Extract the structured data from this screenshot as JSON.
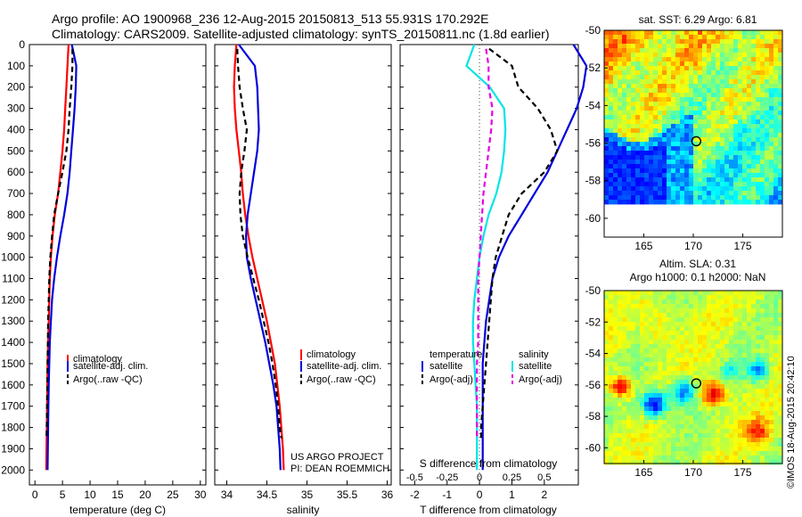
{
  "header": {
    "line1": "Argo profile: AO 1900968_236 12-Aug-2015 20150813_513 55.931S 170.292E",
    "line2": "Climatology: CARS2009. Satellite-adjusted climatology: synTS_20150811.nc (1.8d earlier)"
  },
  "colors": {
    "climatology": "#ff0000",
    "satellite": "#0000dd",
    "argo": "#000000",
    "salinity_satellite": "#00e5e5",
    "salinity_argo": "#e600e6",
    "zero_line": "#444444"
  },
  "project": {
    "line1": "US ARGO PROJECT",
    "line2": "PI: DEAN ROEMMICH"
  },
  "stamp": "©IMOS 18-Aug-2015 20:42:10",
  "maps": {
    "sst_title": "sat. SST: 6.29 Argo: 6.81",
    "sla_title1": "Altim. SLA: 0.31",
    "sla_title2": "Argo h1000: 0.1 h2000: NaN",
    "x_ticks": [
      "165",
      "170",
      "175"
    ],
    "y_ticks": [
      "-50",
      "-52",
      "-54",
      "-56",
      "-58",
      "-60"
    ],
    "lon_range": [
      161,
      179
    ],
    "lat_range": [
      -61,
      -50
    ],
    "float_marker": {
      "lon": 170.3,
      "lat": -55.9
    }
  },
  "chart_data": [
    {
      "type": "line",
      "name": "temperature",
      "xlabel": "temperature (deg C)",
      "ylabel": "",
      "xlim": [
        -1,
        31
      ],
      "ylim": [
        2070,
        0
      ],
      "x_ticks": [
        "0",
        "5",
        "10",
        "15",
        "20",
        "25",
        "30"
      ],
      "y_ticks": [
        "0",
        "100",
        "200",
        "300",
        "400",
        "500",
        "600",
        "700",
        "800",
        "900",
        "1000",
        "1100",
        "1200",
        "1300",
        "1400",
        "1500",
        "1600",
        "1700",
        "1800",
        "1900",
        "2000"
      ],
      "legend": [
        "climatology",
        "satellite-adj. clim.",
        "Argo(..raw -QC)"
      ],
      "legend_position": "lower-right",
      "series": [
        {
          "name": "climatology",
          "x": [
            6.1,
            5.9,
            5.7,
            5.5,
            5.3,
            5.0,
            4.6,
            4.2,
            3.6,
            3.2,
            2.9,
            2.7,
            2.6,
            2.5,
            2.4,
            2.3,
            2.25,
            2.2,
            2.15,
            2.1,
            2.05
          ],
          "y": [
            0,
            100,
            200,
            300,
            400,
            500,
            600,
            700,
            800,
            900,
            1000,
            1100,
            1200,
            1300,
            1400,
            1500,
            1600,
            1700,
            1800,
            1900,
            2000
          ]
        },
        {
          "name": "satellite-adj. clim.",
          "x": [
            6.7,
            7.5,
            7.4,
            7.2,
            6.9,
            6.6,
            6.3,
            5.9,
            5.3,
            4.6,
            4.0,
            3.5,
            3.1,
            2.9,
            2.7,
            2.6,
            2.5,
            2.45,
            2.4,
            2.35,
            2.3
          ],
          "y": [
            0,
            100,
            200,
            300,
            400,
            500,
            600,
            700,
            800,
            900,
            1000,
            1100,
            1200,
            1300,
            1400,
            1500,
            1600,
            1700,
            1800,
            1900,
            2000
          ]
        },
        {
          "name": "Argo(..raw -QC)",
          "x": [
            6.8,
            6.8,
            6.6,
            6.3,
            6.1,
            5.7,
            5.0,
            4.2,
            3.5,
            3.1,
            2.8,
            2.6,
            2.5,
            2.4,
            2.35,
            2.3,
            2.25,
            2.2,
            2.15,
            2.1
          ],
          "y": [
            20,
            100,
            200,
            300,
            400,
            500,
            600,
            700,
            800,
            900,
            1000,
            1100,
            1200,
            1300,
            1400,
            1500,
            1600,
            1700,
            1800,
            1850
          ]
        }
      ]
    },
    {
      "type": "line",
      "name": "salinity",
      "xlabel": "salinity",
      "ylabel": "",
      "xlim": [
        33.85,
        36.05
      ],
      "ylim": [
        2070,
        0
      ],
      "x_ticks": [
        "34",
        "34.5",
        "35",
        "35.5",
        "36"
      ],
      "legend": [
        "climatology",
        "satellite-adj. clim.",
        "Argo(..raw -QC)"
      ],
      "legend_position": "lower-right",
      "series": [
        {
          "name": "climatology",
          "x": [
            34.12,
            34.1,
            34.09,
            34.1,
            34.12,
            34.15,
            34.18,
            34.2,
            34.23,
            34.27,
            34.32,
            34.38,
            34.44,
            34.5,
            34.55,
            34.6,
            34.63,
            34.66,
            34.68,
            34.7,
            34.71
          ],
          "y": [
            0,
            100,
            200,
            300,
            400,
            500,
            600,
            700,
            800,
            900,
            1000,
            1100,
            1200,
            1300,
            1400,
            1500,
            1600,
            1700,
            1800,
            1900,
            2000
          ]
        },
        {
          "name": "satellite-adj. clim.",
          "x": [
            34.15,
            34.35,
            34.38,
            34.39,
            34.4,
            34.38,
            34.34,
            34.3,
            34.26,
            34.24,
            34.25,
            34.3,
            34.36,
            34.42,
            34.48,
            34.53,
            34.58,
            34.62,
            34.64,
            34.66,
            34.67
          ],
          "y": [
            0,
            100,
            200,
            300,
            400,
            500,
            600,
            700,
            800,
            900,
            1000,
            1100,
            1200,
            1300,
            1400,
            1500,
            1600,
            1700,
            1800,
            1900,
            2000
          ]
        },
        {
          "name": "Argo(..raw -QC)",
          "x": [
            34.13,
            34.14,
            34.16,
            34.2,
            34.25,
            34.22,
            34.18,
            34.16,
            34.17,
            34.2,
            34.26,
            34.33,
            34.4,
            34.46,
            34.52,
            34.57,
            34.61,
            34.64,
            34.66,
            34.68
          ],
          "y": [
            20,
            100,
            200,
            300,
            400,
            500,
            600,
            700,
            800,
            900,
            1000,
            1100,
            1200,
            1300,
            1400,
            1500,
            1600,
            1700,
            1800,
            1850
          ]
        }
      ]
    },
    {
      "type": "line",
      "name": "difference",
      "xlabel": "T difference from climatology",
      "xlabel_top": "S difference from climatology",
      "ylabel": "",
      "xlim": [
        -2.45,
        3.05
      ],
      "ylim": [
        2070,
        0
      ],
      "x_ticks": [
        "-2",
        "-1",
        "0",
        "1",
        "2"
      ],
      "s_ticks": [
        "-0.5",
        "-0.25",
        "0",
        "0.25",
        "0.5"
      ],
      "legend": [
        "temperature",
        "satellite",
        "Argo(-adj)",
        "salinity",
        "satellite",
        "Argo(-adj)"
      ],
      "legend_position": "lower-center",
      "series": [
        {
          "name": "satellite",
          "group": "temperature",
          "x": [
            2.9,
            3.3,
            3.2,
            3.0,
            2.7,
            2.4,
            2.1,
            1.7,
            1.3,
            0.9,
            0.6,
            0.4,
            0.3,
            0.2,
            0.15,
            0.1,
            0.1,
            0.1,
            0.1,
            0.1,
            0.1
          ],
          "y": [
            0,
            100,
            200,
            300,
            400,
            500,
            600,
            700,
            800,
            900,
            1000,
            1100,
            1200,
            1300,
            1400,
            1500,
            1600,
            1700,
            1800,
            1900,
            2000
          ]
        },
        {
          "name": "Argo(-adj)",
          "group": "temperature",
          "x": [
            0.3,
            1.0,
            1.2,
            1.8,
            2.2,
            2.4,
            2.0,
            1.3,
            0.9,
            0.7,
            0.5,
            0.4,
            0.35,
            0.3,
            0.25,
            0.2,
            0.15,
            0.1,
            0.05,
            0.05
          ],
          "y": [
            20,
            100,
            200,
            300,
            400,
            500,
            600,
            700,
            800,
            900,
            1000,
            1100,
            1200,
            1300,
            1400,
            1500,
            1600,
            1700,
            1800,
            1850
          ]
        },
        {
          "name": "satellite",
          "group": "salinity",
          "x": [
            -0.04,
            -0.1,
            0.08,
            0.19,
            0.2,
            0.19,
            0.17,
            0.13,
            0.07,
            0.03,
            0.0,
            -0.02,
            -0.04,
            -0.05,
            -0.05,
            -0.04,
            -0.03,
            -0.02,
            -0.02,
            -0.02,
            -0.02
          ],
          "y": [
            0,
            100,
            200,
            300,
            400,
            500,
            600,
            700,
            800,
            900,
            1000,
            1100,
            1200,
            1300,
            1400,
            1500,
            1600,
            1700,
            1800,
            1900,
            2000
          ]
        },
        {
          "name": "Argo(-adj)",
          "group": "salinity",
          "x": [
            0.05,
            0.07,
            0.07,
            0.1,
            0.09,
            0.07,
            0.05,
            0.03,
            0.02,
            0.01,
            0.0,
            -0.01,
            -0.01,
            -0.01,
            -0.01,
            -0.02,
            -0.02,
            -0.02,
            -0.02,
            -0.02
          ],
          "y": [
            20,
            100,
            200,
            300,
            400,
            500,
            600,
            700,
            800,
            900,
            1000,
            1100,
            1200,
            1300,
            1400,
            1500,
            1600,
            1700,
            1800,
            1850
          ]
        }
      ]
    }
  ]
}
